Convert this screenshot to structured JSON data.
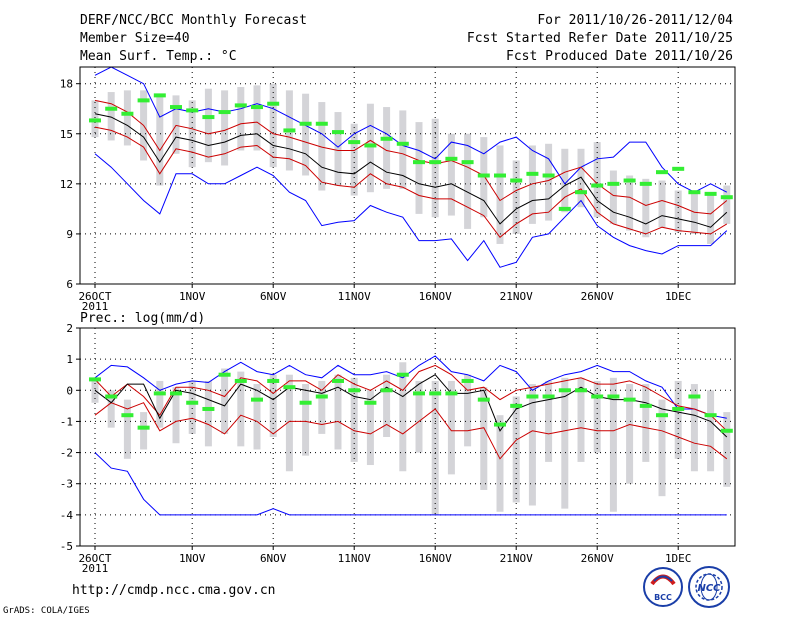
{
  "header": {
    "left": [
      "DERF/NCC/BCC Monthly Forecast",
      "Member Size=40"
    ],
    "right": [
      "For 2011/10/26-2011/12/04",
      "Fcst Started Refer Date 2011/10/25",
      "Fcst Produced Date 2011/10/26"
    ]
  },
  "footer": {
    "url": "http://cmdp.ncc.cma.gov.cn",
    "credit": "GrADS: COLA/IGES",
    "logo_left_text": "BCC",
    "logo_right_text": "NCC"
  },
  "colors": {
    "outer": "#0000ff",
    "inner": "#cc0000",
    "mean": "#000000",
    "obs_marker": "#33ee33",
    "spread_bar": "#d4d4d8"
  },
  "chart_data": [
    {
      "type": "line",
      "title": "Mean Surf. Temp.: °C",
      "xlabel": "",
      "ylabel": "",
      "ylim": [
        6,
        19
      ],
      "y_ticks": [
        6,
        9,
        12,
        15,
        18
      ],
      "x_tick_labels": [
        "26OCT",
        "1NOV",
        "6NOV",
        "11NOV",
        "16NOV",
        "21NOV",
        "26NOV",
        "1DEC"
      ],
      "x_tick_days": [
        1,
        7,
        12,
        17,
        22,
        27,
        32,
        37
      ],
      "x_sublabel": "2011",
      "days": [
        1,
        2,
        3,
        4,
        5,
        6,
        7,
        8,
        9,
        10,
        11,
        12,
        13,
        14,
        15,
        16,
        17,
        18,
        19,
        20,
        21,
        22,
        23,
        24,
        25,
        26,
        27,
        28,
        29,
        30,
        31,
        32,
        33,
        34,
        35,
        36,
        37,
        38,
        39,
        40
      ],
      "series": [
        {
          "name": "max",
          "values": [
            18.5,
            19.0,
            18.5,
            18.0,
            16.0,
            16.5,
            16.3,
            16.5,
            16.3,
            16.5,
            16.8,
            16.5,
            16.0,
            15.5,
            15.0,
            14.2,
            15.0,
            15.5,
            15.0,
            14.3,
            14.0,
            13.5,
            14.5,
            14.3,
            13.8,
            14.5,
            14.8,
            14.0,
            13.5,
            12.0,
            13.0,
            13.5,
            13.6,
            14.5,
            14.5,
            13.0,
            12.0,
            11.5,
            12.0,
            11.5
          ]
        },
        {
          "name": "upper",
          "values": [
            17.0,
            16.8,
            16.3,
            15.5,
            14.0,
            15.5,
            15.3,
            15.0,
            15.2,
            15.6,
            15.7,
            15.0,
            14.8,
            14.5,
            14.2,
            14.0,
            14.0,
            14.6,
            14.0,
            13.8,
            13.4,
            13.2,
            13.4,
            13.0,
            12.5,
            11.0,
            11.6,
            12.0,
            12.2,
            12.7,
            13.0,
            12.0,
            11.3,
            11.2,
            10.7,
            11.0,
            10.7,
            10.3,
            10.2,
            11.0
          ]
        },
        {
          "name": "mean",
          "values": [
            16.2,
            16.0,
            15.5,
            14.8,
            13.3,
            14.8,
            14.6,
            14.3,
            14.5,
            14.9,
            15.0,
            14.3,
            14.1,
            13.8,
            13.0,
            12.7,
            12.6,
            13.3,
            12.7,
            12.5,
            12.0,
            11.8,
            12.0,
            11.5,
            11.0,
            9.6,
            10.5,
            11.0,
            11.1,
            11.9,
            12.4,
            11.0,
            10.3,
            10.0,
            9.6,
            10.1,
            9.9,
            9.7,
            9.4,
            10.3
          ]
        },
        {
          "name": "lower",
          "values": [
            15.4,
            15.2,
            14.8,
            14.2,
            12.6,
            14.1,
            13.9,
            13.6,
            13.8,
            14.2,
            14.3,
            13.6,
            13.5,
            13.1,
            12.1,
            11.9,
            11.8,
            12.6,
            12.0,
            11.8,
            11.3,
            11.1,
            11.1,
            10.6,
            10.1,
            8.8,
            9.6,
            10.2,
            10.3,
            11.2,
            11.7,
            10.3,
            9.6,
            9.3,
            9.0,
            9.4,
            9.2,
            9.1,
            9.0,
            9.6
          ]
        },
        {
          "name": "min",
          "values": [
            13.8,
            13.0,
            12.0,
            11.0,
            10.2,
            12.6,
            12.6,
            12.0,
            12.0,
            12.5,
            13.0,
            12.5,
            11.5,
            11.0,
            9.5,
            9.7,
            9.8,
            10.7,
            10.3,
            10.0,
            8.6,
            8.6,
            8.7,
            7.4,
            8.6,
            7.0,
            7.3,
            8.8,
            9.0,
            10.0,
            11.0,
            9.5,
            8.8,
            8.3,
            8.0,
            7.8,
            8.3,
            8.3,
            8.3,
            9.2
          ]
        },
        {
          "name": "obs",
          "values": [
            15.8,
            16.5,
            16.2,
            17.0,
            17.3,
            16.6,
            16.4,
            16.0,
            16.3,
            16.7,
            16.6,
            16.8,
            15.2,
            15.6,
            15.6,
            15.1,
            14.5,
            14.3,
            14.7,
            14.4,
            13.3,
            13.3,
            13.5,
            13.3,
            12.5,
            12.5,
            12.2,
            12.6,
            12.5,
            10.5,
            11.5,
            11.9,
            12.0,
            12.2,
            12.0,
            12.7,
            12.9,
            11.5,
            11.4,
            11.2
          ]
        },
        {
          "name": "range_high",
          "values": [
            17.0,
            17.5,
            17.6,
            17.6,
            17.3,
            17.3,
            17.0,
            17.7,
            17.6,
            17.8,
            17.9,
            18.0,
            17.6,
            17.4,
            16.9,
            16.3,
            15.6,
            16.8,
            16.6,
            16.4,
            15.7,
            15.9,
            15.0,
            15.0,
            14.8,
            14.3,
            13.4,
            14.3,
            14.4,
            14.1,
            14.1,
            14.5,
            12.8,
            12.5,
            12.3,
            12.2,
            11.6,
            11.6,
            11.5,
            11.9
          ]
        },
        {
          "name": "range_low",
          "values": [
            14.8,
            14.6,
            14.3,
            13.4,
            11.9,
            13.8,
            13.0,
            13.3,
            13.1,
            14.0,
            14.0,
            13.0,
            12.8,
            12.5,
            11.6,
            11.9,
            11.3,
            11.5,
            11.7,
            11.7,
            10.2,
            10.0,
            10.1,
            9.3,
            10.0,
            8.4,
            9.0,
            9.6,
            9.8,
            10.3,
            10.6,
            10.0,
            9.6,
            9.2,
            8.8,
            9.4,
            9.1,
            9.0,
            8.4,
            9.6
          ]
        }
      ]
    },
    {
      "type": "line",
      "title": "Prec.: log(mm/d)",
      "xlabel": "",
      "ylabel": "",
      "ylim": [
        -5,
        2
      ],
      "y_ticks": [
        -5,
        -4,
        -3,
        -2,
        -1,
        0,
        1,
        2
      ],
      "x_tick_labels": [
        "26OCT",
        "1NOV",
        "6NOV",
        "11NOV",
        "16NOV",
        "21NOV",
        "26NOV",
        "1DEC"
      ],
      "x_tick_days": [
        1,
        7,
        12,
        17,
        22,
        27,
        32,
        37
      ],
      "x_sublabel": "2011",
      "days": [
        1,
        2,
        3,
        4,
        5,
        6,
        7,
        8,
        9,
        10,
        11,
        12,
        13,
        14,
        15,
        16,
        17,
        18,
        19,
        20,
        21,
        22,
        23,
        24,
        25,
        26,
        27,
        28,
        29,
        30,
        31,
        32,
        33,
        34,
        35,
        36,
        37,
        38,
        39,
        40
      ],
      "series": [
        {
          "name": "max",
          "values": [
            0.4,
            0.8,
            0.75,
            0.4,
            0.0,
            0.2,
            0.3,
            0.25,
            0.6,
            0.9,
            0.6,
            0.5,
            0.8,
            0.5,
            0.4,
            0.8,
            0.5,
            0.5,
            0.6,
            0.4,
            0.8,
            1.1,
            0.6,
            0.5,
            0.3,
            0.8,
            0.6,
            0.0,
            0.3,
            0.5,
            0.6,
            0.8,
            0.6,
            0.6,
            0.3,
            0.1,
            -0.6,
            -0.6,
            -0.8,
            -0.9
          ]
        },
        {
          "name": "upper",
          "values": [
            0.35,
            -0.2,
            0.2,
            -0.2,
            -0.8,
            0.1,
            0.1,
            0.0,
            -0.2,
            0.4,
            0.3,
            -0.1,
            0.3,
            0.3,
            0.0,
            0.5,
            0.2,
            0.0,
            0.3,
            0.0,
            0.6,
            0.8,
            0.5,
            0.0,
            0.1,
            -0.3,
            0.0,
            0.1,
            0.2,
            0.3,
            0.4,
            0.2,
            0.2,
            0.3,
            0.1,
            -0.2,
            -0.5,
            -0.6,
            -0.8,
            -1.3
          ]
        },
        {
          "name": "mean",
          "values": [
            0.0,
            -0.4,
            0.2,
            0.2,
            -0.9,
            0.0,
            -0.1,
            -0.3,
            -0.5,
            0.2,
            0.0,
            -0.3,
            0.1,
            0.0,
            -0.1,
            0.1,
            -0.2,
            -0.3,
            0.1,
            -0.2,
            0.2,
            0.5,
            -0.1,
            -0.1,
            0.0,
            -1.3,
            -0.6,
            -0.4,
            -0.3,
            -0.2,
            0.1,
            -0.2,
            -0.3,
            -0.3,
            -0.4,
            -0.6,
            -0.7,
            -0.8,
            -1.0,
            -1.5
          ]
        },
        {
          "name": "lower",
          "values": [
            -0.8,
            -0.4,
            -0.6,
            -0.4,
            -1.3,
            -1.0,
            -0.9,
            -1.1,
            -1.4,
            -0.8,
            -1.0,
            -1.4,
            -1.0,
            -1.0,
            -1.1,
            -1.0,
            -1.3,
            -1.4,
            -1.1,
            -1.4,
            -1.0,
            -0.6,
            -1.3,
            -1.3,
            -1.2,
            -2.2,
            -1.6,
            -1.3,
            -1.4,
            -1.3,
            -1.2,
            -1.3,
            -1.3,
            -1.1,
            -1.2,
            -1.3,
            -1.5,
            -1.7,
            -1.8,
            -2.2
          ]
        },
        {
          "name": "min",
          "values": [
            -2.0,
            -2.5,
            -2.6,
            -3.5,
            -4.0,
            -4.0,
            -4.0,
            -4.0,
            -4.0,
            -4.0,
            -4.0,
            -3.8,
            -4.0,
            -4.0,
            -4.0,
            -4.0,
            -4.0,
            -4.0,
            -4.0,
            -4.0,
            -4.0,
            -4.0,
            -4.0,
            -4.0,
            -4.0,
            -4.0,
            -4.0,
            -4.0,
            -4.0,
            -4.0,
            -4.0,
            -4.0,
            -4.0,
            -4.0,
            -4.0,
            -4.0,
            -4.0,
            -4.0,
            -4.0,
            -4.0
          ]
        },
        {
          "name": "obs",
          "values": [
            0.35,
            -0.2,
            -0.8,
            -1.2,
            -0.1,
            -0.1,
            -0.4,
            -0.6,
            0.5,
            0.3,
            -0.3,
            0.3,
            0.1,
            -0.4,
            -0.2,
            0.3,
            0.0,
            -0.4,
            0.0,
            0.5,
            -0.1,
            -0.1,
            -0.1,
            0.3,
            -0.3,
            -1.1,
            -0.5,
            -0.2,
            -0.2,
            0.0,
            0.0,
            -0.2,
            -0.2,
            -0.3,
            -0.5,
            -0.8,
            -0.6,
            -0.2,
            -0.8,
            -1.3
          ]
        },
        {
          "name": "range_high",
          "values": [
            0.4,
            0.0,
            -0.3,
            -0.7,
            0.3,
            0.1,
            0.3,
            0.3,
            0.7,
            0.6,
            0.2,
            0.5,
            0.5,
            0.2,
            0.3,
            0.5,
            0.4,
            0.0,
            0.5,
            0.9,
            0.3,
            0.3,
            0.3,
            0.5,
            0.1,
            -0.8,
            -0.2,
            0.2,
            0.3,
            0.4,
            0.4,
            0.3,
            0.4,
            0.2,
            0.2,
            -0.3,
            0.3,
            0.2,
            0.0,
            -0.7
          ]
        },
        {
          "name": "range_low",
          "values": [
            -0.4,
            -1.2,
            -2.2,
            -1.9,
            -1.2,
            -1.7,
            -1.4,
            -1.8,
            -1.4,
            -1.8,
            -1.9,
            -1.5,
            -2.6,
            -2.1,
            -1.4,
            -1.9,
            -2.3,
            -2.4,
            -1.5,
            -2.6,
            -2.0,
            -4.0,
            -2.7,
            -1.8,
            -3.2,
            -3.9,
            -3.6,
            -3.7,
            -2.3,
            -3.8,
            -2.3,
            -2.0,
            -3.9,
            -3.0,
            -2.3,
            -3.4,
            -2.2,
            -2.6,
            -2.6,
            -3.1
          ]
        }
      ]
    }
  ]
}
